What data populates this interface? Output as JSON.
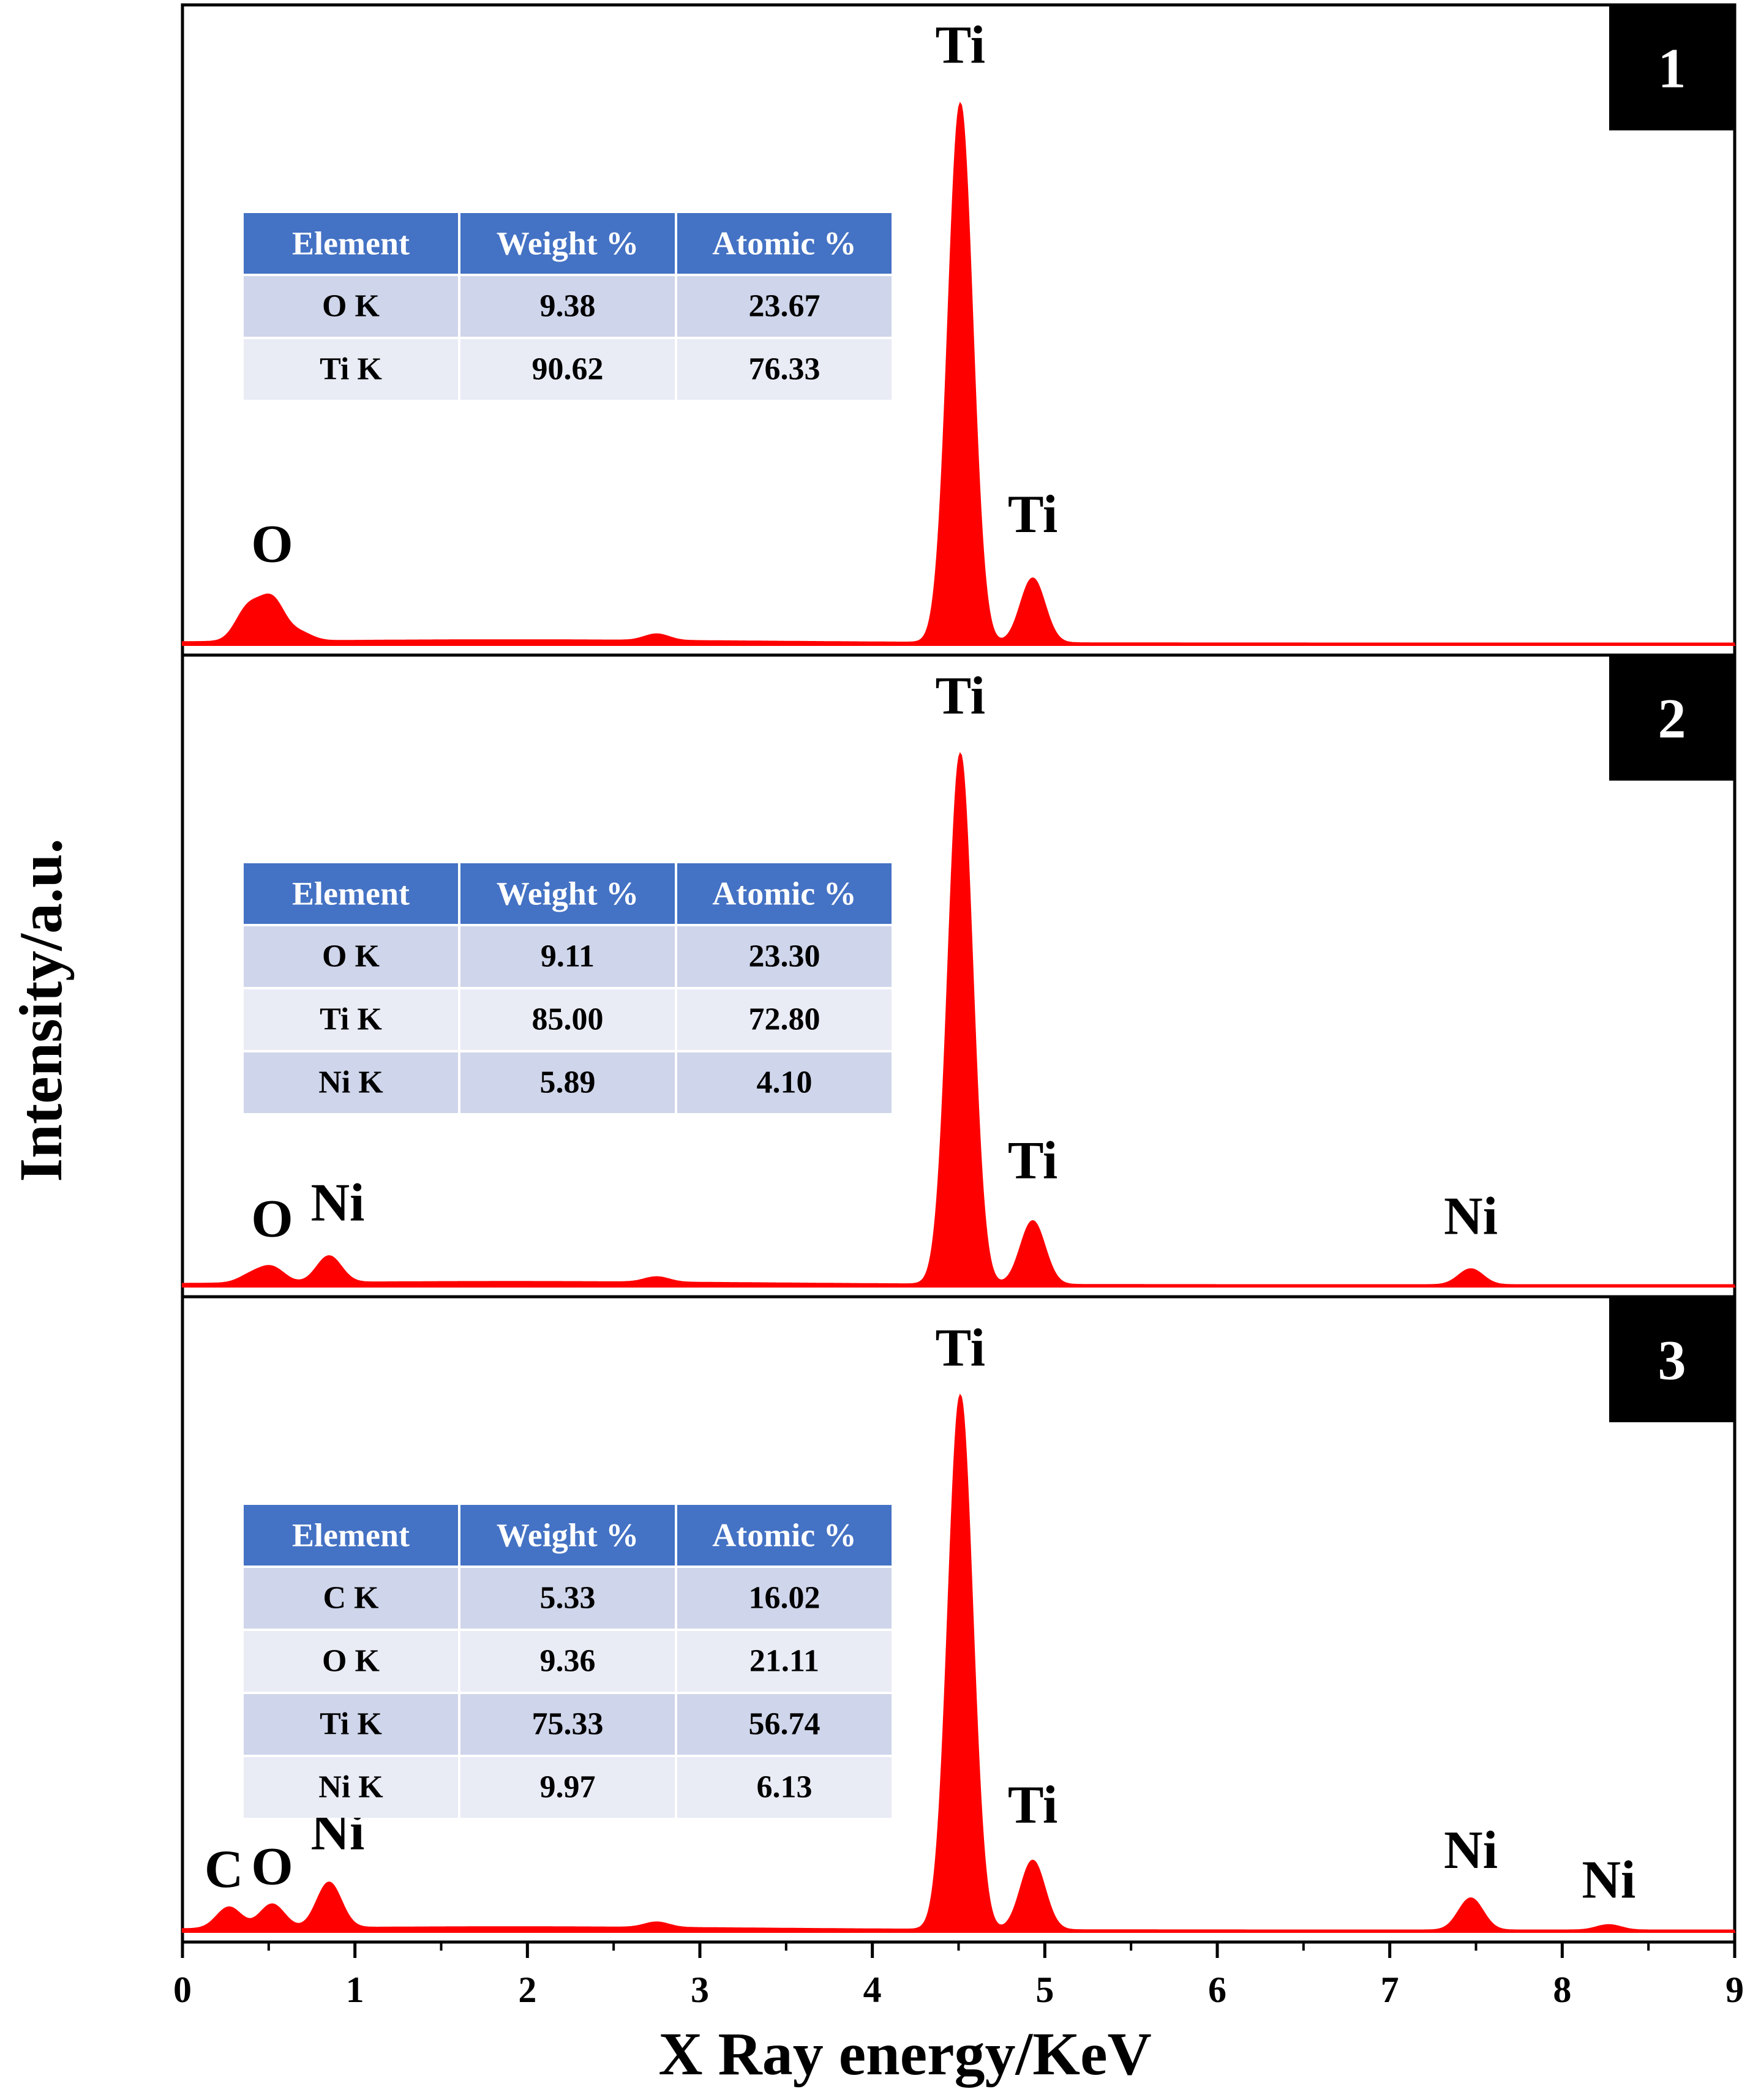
{
  "chart_data": {
    "type": "area",
    "xlabel": "X Ray energy/KeV",
    "ylabel": "Intensity/a.u.",
    "xlim": [
      0,
      9
    ],
    "xticks": [
      0,
      1,
      2,
      3,
      4,
      5,
      6,
      7,
      8,
      9
    ],
    "series_color": "#ff0000",
    "table_header_color": "#4472c4",
    "table_row_odd_color": "#cfd5ea",
    "table_row_even_color": "#e9ebf5",
    "table_columns": [
      "Element",
      "Weight %",
      "Atomic %"
    ],
    "panels": [
      {
        "label": "1",
        "peaks": [
          {
            "x": 0.38,
            "h": 0.06
          },
          {
            "x": 0.52,
            "h": 0.075
          },
          {
            "x": 0.68,
            "h": 0.015
          },
          {
            "x": 2.75,
            "h": 0.012
          },
          {
            "x": 4.51,
            "h": 1.0
          },
          {
            "x": 4.93,
            "h": 0.12
          }
        ],
        "peak_labels": [
          {
            "text": "O",
            "x": 0.52,
            "y": 0.155
          },
          {
            "text": "Ti",
            "x": 4.51,
            "y": 1.08
          },
          {
            "text": "Ti",
            "x": 4.93,
            "y": 0.21
          }
        ],
        "table": [
          [
            "O K",
            "9.38",
            "23.67"
          ],
          [
            "Ti K",
            "90.62",
            "76.33"
          ]
        ]
      },
      {
        "label": "2",
        "peaks": [
          {
            "x": 0.4,
            "h": 0.015
          },
          {
            "x": 0.52,
            "h": 0.028
          },
          {
            "x": 0.85,
            "h": 0.05
          },
          {
            "x": 2.75,
            "h": 0.01
          },
          {
            "x": 4.51,
            "h": 1.0
          },
          {
            "x": 4.93,
            "h": 0.12
          },
          {
            "x": 7.47,
            "h": 0.03
          }
        ],
        "peak_labels": [
          {
            "text": "O",
            "x": 0.52,
            "y": 0.095
          },
          {
            "text": "Ni",
            "x": 0.9,
            "y": 0.125
          },
          {
            "text": "Ti",
            "x": 4.51,
            "y": 1.08
          },
          {
            "text": "Ti",
            "x": 4.93,
            "y": 0.205
          },
          {
            "text": "Ni",
            "x": 7.47,
            "y": 0.1
          }
        ],
        "table": [
          [
            "O K",
            "9.11",
            "23.30"
          ],
          [
            "Ti K",
            "85.00",
            "72.80"
          ],
          [
            "Ni K",
            "5.89",
            "4.10"
          ]
        ]
      },
      {
        "label": "3",
        "peaks": [
          {
            "x": 0.27,
            "h": 0.04
          },
          {
            "x": 0.52,
            "h": 0.045
          },
          {
            "x": 0.85,
            "h": 0.085
          },
          {
            "x": 2.75,
            "h": 0.01
          },
          {
            "x": 4.51,
            "h": 1.0
          },
          {
            "x": 4.93,
            "h": 0.13
          },
          {
            "x": 7.47,
            "h": 0.06
          },
          {
            "x": 8.27,
            "h": 0.01
          }
        ],
        "peak_labels": [
          {
            "text": "C",
            "x": 0.24,
            "y": 0.085
          },
          {
            "text": "O",
            "x": 0.52,
            "y": 0.09
          },
          {
            "text": "Ni",
            "x": 0.9,
            "y": 0.155
          },
          {
            "text": "Ti",
            "x": 4.51,
            "y": 1.06
          },
          {
            "text": "Ti",
            "x": 4.93,
            "y": 0.205
          },
          {
            "text": "Ni",
            "x": 7.47,
            "y": 0.12
          },
          {
            "text": "Ni",
            "x": 8.27,
            "y": 0.065
          }
        ],
        "table": [
          [
            "C K",
            "5.33",
            "16.02"
          ],
          [
            "O K",
            "9.36",
            "21.11"
          ],
          [
            "Ti K",
            "75.33",
            "56.74"
          ],
          [
            "Ni K",
            "9.97",
            "6.13"
          ]
        ]
      }
    ]
  }
}
